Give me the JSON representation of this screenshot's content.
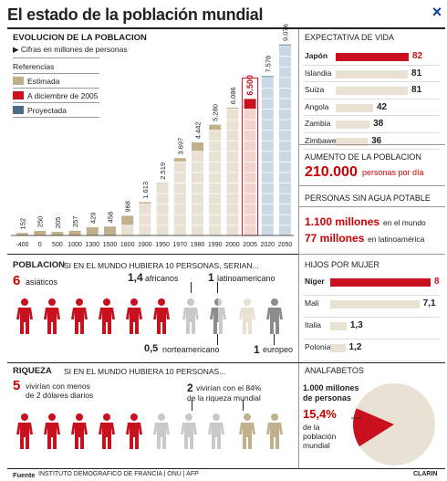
{
  "header": {
    "title": "El estado de la población mundial",
    "close_icon": "×"
  },
  "evolucion": {
    "title": "EVOLUCION DE LA POBLACION",
    "subtitle": "▶ Cifras en millones de personas",
    "ref_title": "Referencias",
    "refs": [
      {
        "label": "Estimada",
        "color": "#c2b08c"
      },
      {
        "label": "A diciembre de 2005",
        "color": "#c8101e"
      },
      {
        "label": "Proyectada",
        "color": "#4a6f82"
      }
    ]
  },
  "chart_data": {
    "type": "bar",
    "title": "EVOLUCION DE LA POBLACION",
    "categories": [
      "-400",
      "0",
      "500",
      "1000",
      "1300",
      "1500",
      "1800",
      "1900",
      "1950",
      "1970",
      "1980",
      "1990",
      "2000",
      "2005",
      "2020",
      "2050"
    ],
    "values": [
      152,
      250,
      205,
      257,
      429,
      458,
      968,
      1613,
      2519,
      3697,
      4442,
      5280,
      6086,
      6500,
      7578,
      9076
    ],
    "labels": [
      "152",
      "250",
      "205",
      "257",
      "429",
      "458",
      "968",
      "1.613",
      "2.519",
      "3.697",
      "4.442",
      "5.280",
      "6.086",
      "6.500",
      "7.578",
      "9.076"
    ],
    "ylim": [
      0,
      9076
    ]
  },
  "expectativa": {
    "title": "EXPECTATIVA DE VIDA",
    "rows": [
      {
        "country": "Japón",
        "value": 82,
        "label": "82"
      },
      {
        "country": "Islandia",
        "value": 81,
        "label": "81"
      },
      {
        "country": "Suiza",
        "value": 81,
        "label": "81"
      },
      {
        "country": "Angola",
        "value": 42,
        "label": "42"
      },
      {
        "country": "Zambia",
        "value": 38,
        "label": "38"
      },
      {
        "country": "Zimbawe",
        "value": 36,
        "label": "36"
      }
    ]
  },
  "aumento": {
    "title": "AUMENTO DE LA POBLACION",
    "value": "210.000",
    "unit": "personas por día"
  },
  "agua": {
    "title": "PERSONAS SIN AGUA POTABLE",
    "v1": "1.100 millones",
    "t1": "en el mundo",
    "v2": "77 millones",
    "t2": "en latinoamérica"
  },
  "poblacion": {
    "title": "POBLACION",
    "subtitle": "SI EN EL MUNDO HUBIERA 10 PERSONAS, SERIAN...",
    "asiaticos_num": "6",
    "asiaticos": "asiáticos",
    "africanos_num": "1,4",
    "africanos": "africanos",
    "latino_num": "1",
    "latino": "latinoamericano",
    "norte_num": "0,5",
    "norte": "norteamericano",
    "europeo_num": "1",
    "europeo": "europeo"
  },
  "hijos": {
    "title": "HIJOS POR MUJER",
    "rows": [
      {
        "country": "Níger",
        "value": 8,
        "label": "8"
      },
      {
        "country": "Mali",
        "value": 7.1,
        "label": "7,1"
      },
      {
        "country": "Italia",
        "value": 1.3,
        "label": "1,3"
      },
      {
        "country": "Polonia",
        "value": 1.2,
        "label": "1,2"
      }
    ]
  },
  "riqueza": {
    "title": "RIQUEZA",
    "subtitle": "SI EN EL MUNDO HUBIERA 10 PERSONAS...",
    "n1": "5",
    "t1a": "vivirían con menos",
    "t1b": "de 2 dólares diarios",
    "n2": "2",
    "t2a": "vivirían con el 84%",
    "t2b": "de la riqueza mundial"
  },
  "analfabetos": {
    "title": "ANALFABETOS",
    "v1": "1.000 millones",
    "v1b": "de personas",
    "pct": "15,4%",
    "pct_value": 15.4,
    "t1": "de la",
    "t2": "población",
    "t3": "mundial"
  },
  "footer": {
    "fuente": "Fuente",
    "source": "INSTITUTO DEMOGRAFICO DE FRANCIA | ONU | AFP",
    "brand": "CLARIN"
  },
  "colors": {
    "red": "#c8101e",
    "beige": "#c2b08c",
    "light_beige": "#e8e1d4",
    "slate": "#4a6f82",
    "light_blue": "#c9d8e2",
    "grey": "#c9c9c9",
    "dark_grey": "#8c8c8c"
  }
}
